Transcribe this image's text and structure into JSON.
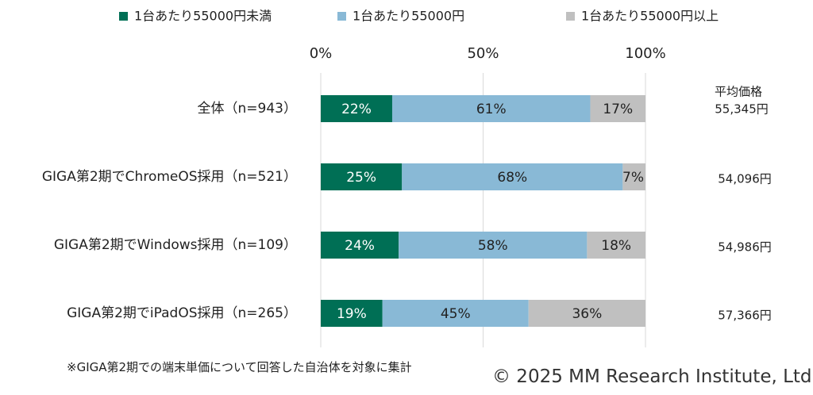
{
  "chart_data": {
    "type": "bar",
    "orientation": "horizontal",
    "stacked": true,
    "categories": [
      "全体（n=943）",
      "GIGA第2期でChromeOS採用（n=521）",
      "GIGA第2期でWindows採用（n=109）",
      "GIGA第2期でiPadOS採用（n=265）"
    ],
    "series": [
      {
        "name": "1台あたり55000円未満",
        "values": [
          22,
          25,
          24,
          19
        ],
        "color": "#006f55"
      },
      {
        "name": "1台あたり55000円",
        "values": [
          61,
          68,
          58,
          45
        ],
        "color": "#89b9d6"
      },
      {
        "name": "1台あたり55000円以上",
        "values": [
          17,
          7,
          18,
          36
        ],
        "color": "#c0c0c0"
      }
    ],
    "data_labels": [
      [
        "22%",
        "61%",
        "17%"
      ],
      [
        "25%",
        "68%",
        "7%"
      ],
      [
        "24%",
        "58%",
        "18%"
      ],
      [
        "19%",
        "45%",
        "36%"
      ]
    ],
    "x_ticks": [
      "0%",
      "50%",
      "100%"
    ],
    "xlim": [
      0,
      100
    ],
    "grid": true,
    "legend_position": "top",
    "side_header": [
      "平均価格"
    ],
    "side_values": [
      "55,345円",
      "54,096円",
      "54,986円",
      "57,366円"
    ]
  },
  "footnote": "※GIGA第2期での端末単価について回答した自治体を対象に集計",
  "copyright": "© 2025 MM Research Institute, Ltd."
}
